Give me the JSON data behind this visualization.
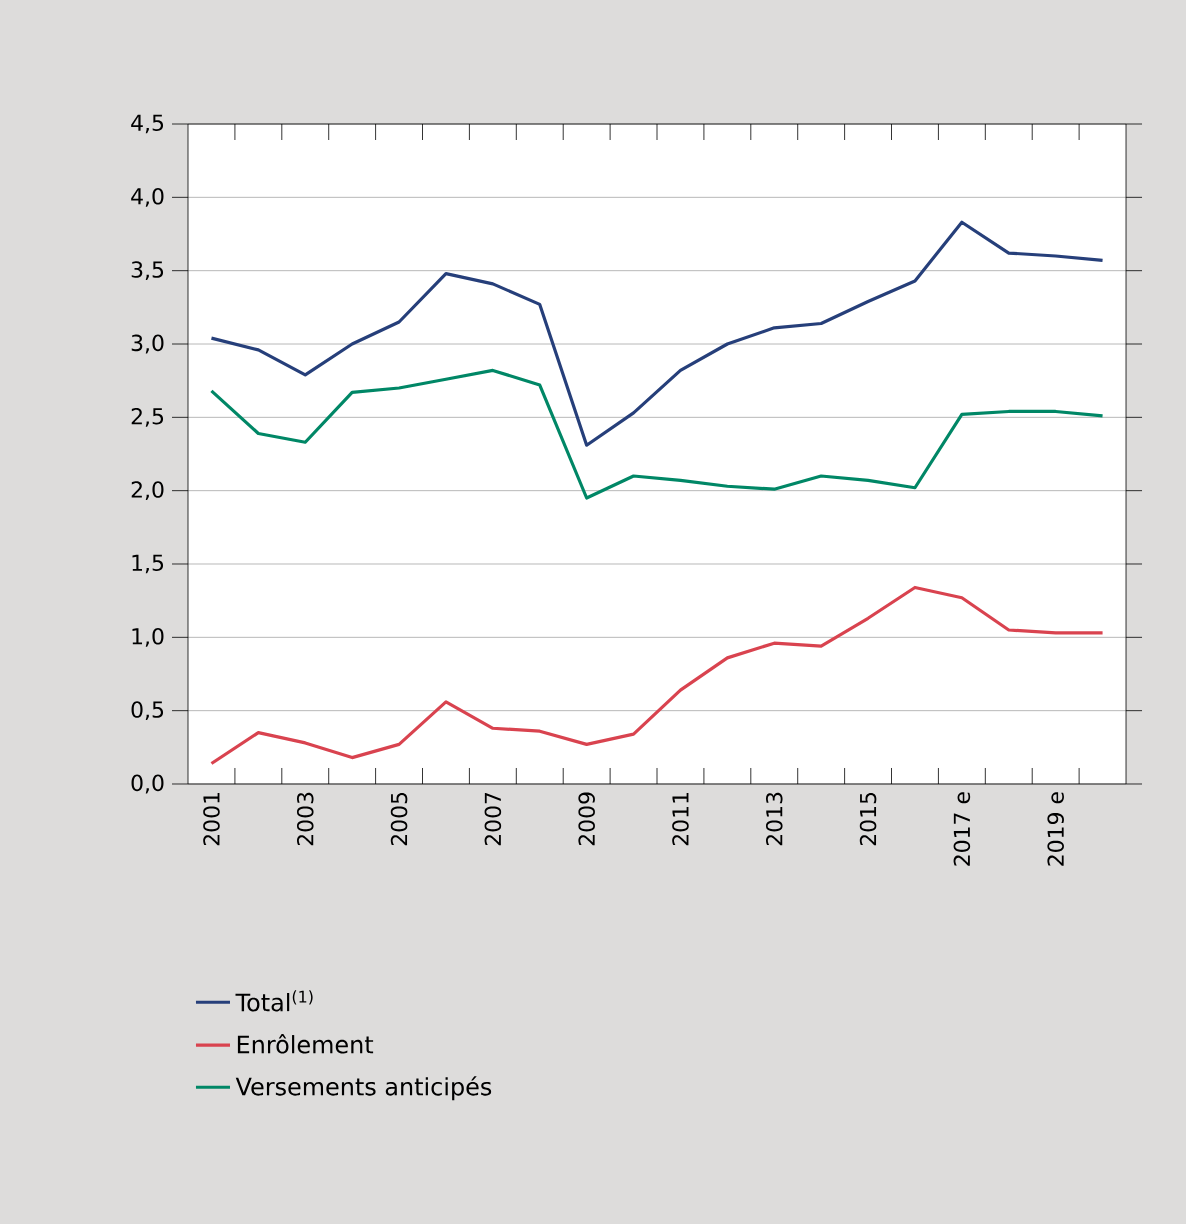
{
  "chart_data": {
    "type": "line",
    "categories": [
      "2001",
      null,
      "2003",
      null,
      "2005",
      null,
      "2007",
      null,
      "2009",
      null,
      "2011",
      null,
      "2013",
      null,
      "2015",
      null,
      "2017 e",
      null,
      "2019 e",
      null
    ],
    "series": [
      {
        "name": "Total$^{(1)}$",
        "color": "#263f7a",
        "values": [
          3.04,
          2.96,
          2.79,
          3.0,
          3.15,
          3.48,
          3.41,
          3.27,
          2.31,
          2.53,
          2.82,
          3.0,
          3.11,
          3.14,
          3.29,
          3.43,
          3.83,
          3.62,
          3.6,
          3.57
        ]
      },
      {
        "name": "Enrôlement",
        "color": "#d9434f",
        "values": [
          0.14,
          0.35,
          0.28,
          0.18,
          0.27,
          0.56,
          0.38,
          0.36,
          0.27,
          0.34,
          0.64,
          0.86,
          0.96,
          0.94,
          1.13,
          1.34,
          1.27,
          1.05,
          1.03,
          1.03
        ]
      },
      {
        "name": "Versements anticipés",
        "color": "#008766",
        "values": [
          2.68,
          2.39,
          2.33,
          2.67,
          2.7,
          2.76,
          2.82,
          2.72,
          1.95,
          2.1,
          2.07,
          2.03,
          2.01,
          2.1,
          2.07,
          2.02,
          2.52,
          2.54,
          2.54,
          2.51
        ]
      }
    ],
    "ylim": [
      0,
      4.5
    ],
    "yticks": [
      {
        "value": 0,
        "label": "0,0"
      },
      {
        "value": 0.5,
        "label": "0,5"
      },
      {
        "value": 1,
        "label": "1,0"
      },
      {
        "value": 1.5,
        "label": "1,5"
      },
      {
        "value": 2,
        "label": "2,0"
      },
      {
        "value": 2.5,
        "label": "2,5"
      },
      {
        "value": 3,
        "label": "3,0"
      },
      {
        "value": 3.5,
        "label": "3,5"
      },
      {
        "value": 4,
        "label": "4,0"
      },
      {
        "value": 4.5,
        "label": "4,5"
      }
    ],
    "grid": "y",
    "legend": "bottom left",
    "marker": "none",
    "line_style": "solid"
  }
}
